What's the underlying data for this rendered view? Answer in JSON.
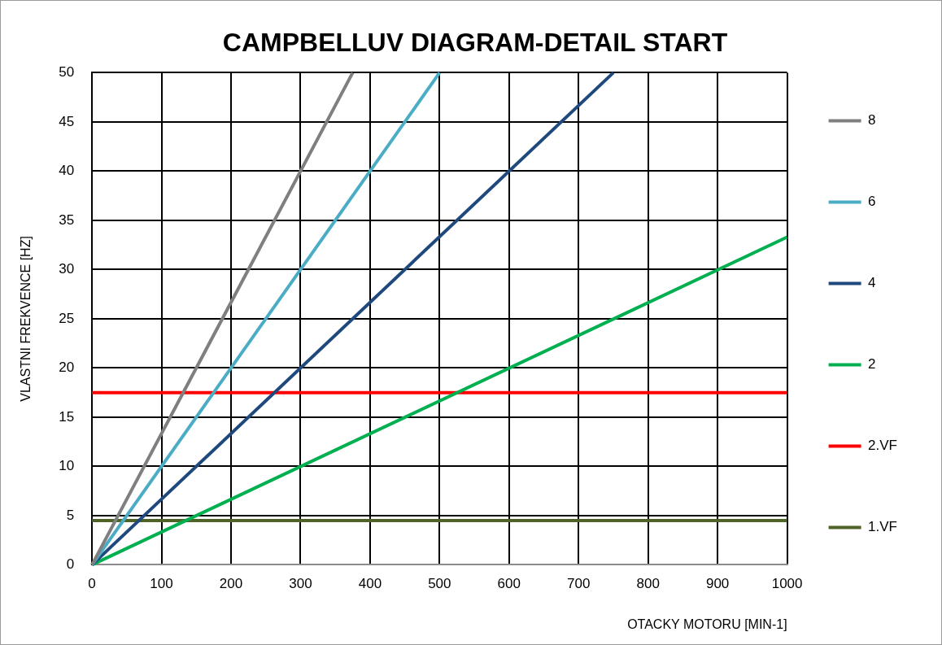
{
  "chart_data": {
    "type": "line",
    "title": "CAMPBELLUV DIAGRAM-DETAIL START",
    "xlabel": "OTACKY MOTORU [MIN-1]",
    "ylabel": "VLASTNI FREKVENCE [HZ]",
    "xlim": [
      0,
      1000
    ],
    "xticks": [
      0,
      100,
      200,
      300,
      400,
      500,
      600,
      700,
      800,
      900,
      1000
    ],
    "ylim": [
      0,
      50
    ],
    "yticks": [
      0,
      5,
      10,
      15,
      20,
      25,
      30,
      35,
      40,
      45,
      50
    ],
    "series": [
      {
        "name": "8",
        "color": "#7f7f7f",
        "x": [
          0,
          375
        ],
        "values": [
          0,
          50
        ]
      },
      {
        "name": "6",
        "color": "#4bacc6",
        "x": [
          0,
          500
        ],
        "values": [
          0,
          50
        ]
      },
      {
        "name": "4",
        "color": "#1f497d",
        "x": [
          0,
          750
        ],
        "values": [
          0,
          50
        ]
      },
      {
        "name": "2",
        "color": "#00b050",
        "x": [
          0,
          1000
        ],
        "values": [
          0,
          33.3
        ]
      },
      {
        "name": "2.VF",
        "color": "#ff0000",
        "x": [
          0,
          1000
        ],
        "values": [
          17.5,
          17.5
        ]
      },
      {
        "name": "1.VF",
        "color": "#4f6228",
        "x": [
          0,
          1000
        ],
        "values": [
          4.5,
          4.5
        ]
      }
    ],
    "grid": true,
    "legend": "right"
  }
}
